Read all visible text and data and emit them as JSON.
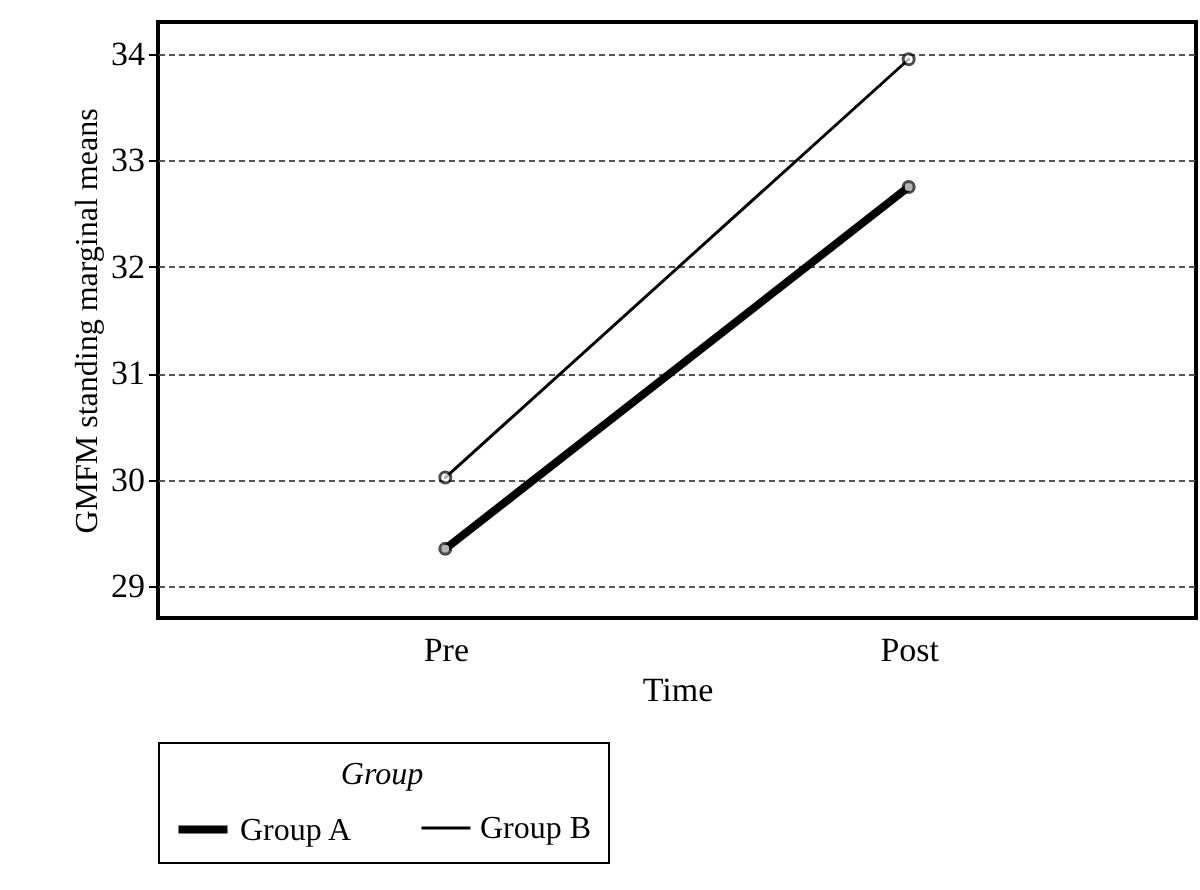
{
  "chart_data": {
    "type": "line",
    "xlabel": "Time",
    "ylabel": "GMFM standing marginal means",
    "legend_title": "Group",
    "categories": [
      "Pre",
      "Post"
    ],
    "series": [
      {
        "name": "Group A",
        "color": "#000000",
        "values": [
          29.35,
          32.75
        ]
      },
      {
        "name": "Group B",
        "color": "#000000",
        "values": [
          30.02,
          33.95
        ]
      }
    ],
    "ylim": [
      28.7,
      34.3
    ],
    "yticks": [
      29,
      30,
      31,
      32,
      33,
      34
    ],
    "grid": "y",
    "legend": "bottom",
    "marker": "circle",
    "line_style": "solid"
  }
}
